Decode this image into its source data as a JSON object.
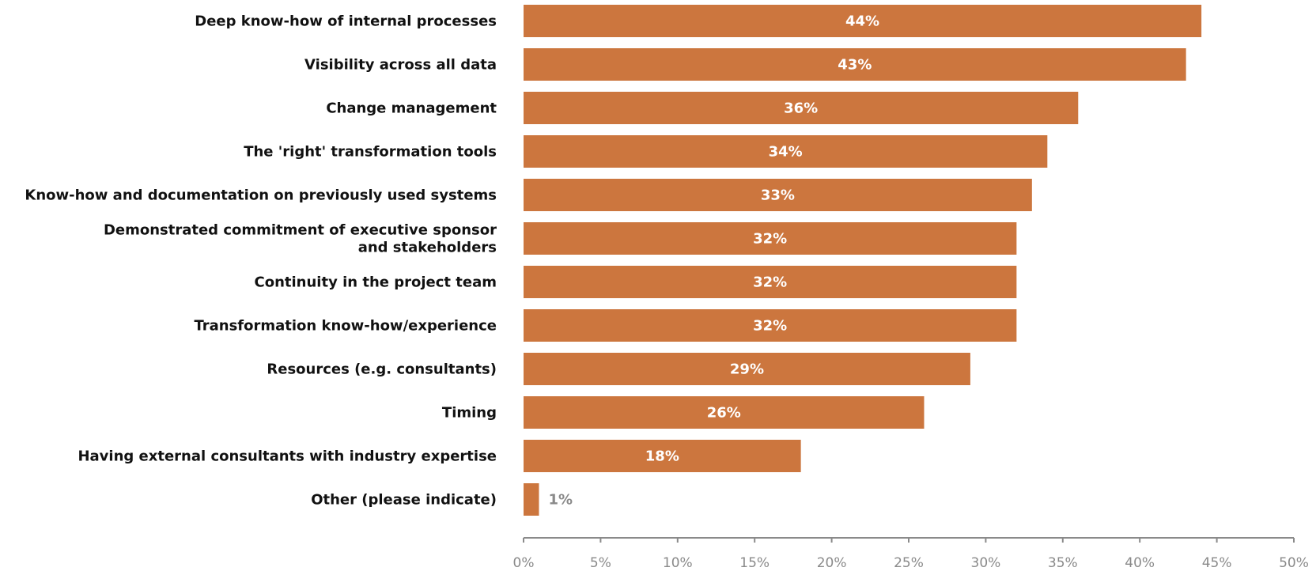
{
  "chart_data": {
    "type": "bar",
    "orientation": "horizontal",
    "categories": [
      [
        "Deep know-how of internal processes"
      ],
      [
        "Visibility across all data"
      ],
      [
        "Change management"
      ],
      [
        "The 'right' transformation tools"
      ],
      [
        "Know-how and documentation on previously used systems"
      ],
      [
        "Demonstrated commitment of executive sponsor",
        "and stakeholders"
      ],
      [
        "Continuity in the project team"
      ],
      [
        "Transformation know-how/experience"
      ],
      [
        "Resources (e.g. consultants)"
      ],
      [
        "Timing"
      ],
      [
        "Having external consultants with industry expertise"
      ],
      [
        "Other (please indicate)"
      ]
    ],
    "values": [
      44,
      43,
      36,
      34,
      33,
      32,
      32,
      32,
      29,
      26,
      18,
      1
    ],
    "data_labels": [
      "44%",
      "43%",
      "36%",
      "34%",
      "33%",
      "32%",
      "32%",
      "32%",
      "29%",
      "26%",
      "18%",
      "1%"
    ],
    "xlim": [
      0,
      50
    ],
    "xticks": [
      0,
      5,
      10,
      15,
      20,
      25,
      30,
      35,
      40,
      45,
      50
    ],
    "xtick_labels": [
      "0%",
      "5%",
      "10%",
      "15%",
      "20%",
      "25%",
      "30%",
      "35%",
      "40%",
      "45%",
      "50%"
    ],
    "title": "",
    "xlabel": "",
    "ylabel": "",
    "grid": false,
    "colors": {
      "bar": "#CC763E",
      "label_inside": "#ffffff",
      "label_outside": "#8a8a8a",
      "axis": "#8a8a8a"
    }
  }
}
